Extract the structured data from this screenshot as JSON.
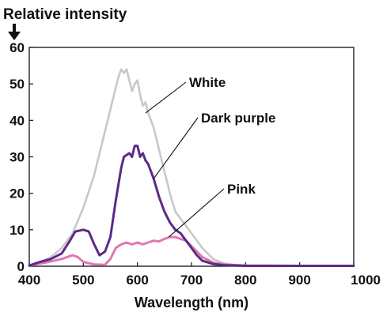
{
  "chart_data": {
    "type": "line",
    "title": "Relative intensity",
    "xlabel": "Wavelength (nm)",
    "ylabel": "Relative intensity",
    "xlim": [
      400,
      1000
    ],
    "ylim": [
      0,
      60
    ],
    "x_ticks": [
      "400",
      "500",
      "600",
      "700",
      "800",
      "900",
      "1000"
    ],
    "y_ticks": [
      "0",
      "10",
      "20",
      "30",
      "40",
      "50",
      "60"
    ],
    "grid": false,
    "legend": "direct labels",
    "series": [
      {
        "name": "White",
        "color": "#c8c8c8",
        "points": [
          [
            400,
            0.2
          ],
          [
            420,
            1
          ],
          [
            440,
            2.5
          ],
          [
            460,
            5
          ],
          [
            480,
            9
          ],
          [
            500,
            16
          ],
          [
            520,
            25
          ],
          [
            540,
            37
          ],
          [
            555,
            46
          ],
          [
            565,
            52
          ],
          [
            570,
            54
          ],
          [
            575,
            53
          ],
          [
            580,
            54
          ],
          [
            585,
            51
          ],
          [
            590,
            48
          ],
          [
            595,
            50
          ],
          [
            600,
            51
          ],
          [
            605,
            47
          ],
          [
            610,
            44
          ],
          [
            615,
            45
          ],
          [
            620,
            42
          ],
          [
            630,
            38
          ],
          [
            640,
            32
          ],
          [
            650,
            26
          ],
          [
            660,
            20
          ],
          [
            670,
            15
          ],
          [
            680,
            13
          ],
          [
            690,
            11
          ],
          [
            700,
            9
          ],
          [
            710,
            7
          ],
          [
            720,
            5
          ],
          [
            740,
            2
          ],
          [
            760,
            0.8
          ],
          [
            780,
            0.3
          ],
          [
            800,
            0.2
          ],
          [
            850,
            0.1
          ],
          [
            900,
            0.1
          ],
          [
            1000,
            0.1
          ]
        ]
      },
      {
        "name": "Dark purple",
        "color": "#5c2a8a",
        "points": [
          [
            400,
            0.2
          ],
          [
            420,
            1.2
          ],
          [
            440,
            2
          ],
          [
            460,
            3.5
          ],
          [
            475,
            7
          ],
          [
            485,
            9.5
          ],
          [
            500,
            10
          ],
          [
            510,
            9.5
          ],
          [
            520,
            6
          ],
          [
            530,
            3
          ],
          [
            540,
            4
          ],
          [
            550,
            8
          ],
          [
            560,
            18
          ],
          [
            570,
            27
          ],
          [
            575,
            30
          ],
          [
            585,
            31
          ],
          [
            590,
            30
          ],
          [
            595,
            33
          ],
          [
            600,
            33
          ],
          [
            605,
            30
          ],
          [
            610,
            31
          ],
          [
            615,
            29
          ],
          [
            620,
            28
          ],
          [
            630,
            24
          ],
          [
            640,
            19
          ],
          [
            650,
            15
          ],
          [
            660,
            12
          ],
          [
            670,
            10
          ],
          [
            680,
            9
          ],
          [
            690,
            7
          ],
          [
            700,
            5
          ],
          [
            710,
            3
          ],
          [
            720,
            1.5
          ],
          [
            740,
            0.6
          ],
          [
            760,
            0.3
          ],
          [
            800,
            0.1
          ],
          [
            900,
            0.1
          ],
          [
            1000,
            0.1
          ]
        ]
      },
      {
        "name": "Pink",
        "color": "#e078b0",
        "points": [
          [
            400,
            0.2
          ],
          [
            430,
            1
          ],
          [
            460,
            2
          ],
          [
            480,
            3
          ],
          [
            490,
            2.5
          ],
          [
            500,
            1.2
          ],
          [
            520,
            0.5
          ],
          [
            540,
            0.4
          ],
          [
            550,
            2
          ],
          [
            560,
            5
          ],
          [
            570,
            6
          ],
          [
            580,
            6.5
          ],
          [
            590,
            6
          ],
          [
            600,
            6.5
          ],
          [
            610,
            6
          ],
          [
            620,
            6.5
          ],
          [
            630,
            7
          ],
          [
            640,
            6.8
          ],
          [
            650,
            7.5
          ],
          [
            660,
            8
          ],
          [
            670,
            8
          ],
          [
            680,
            7.5
          ],
          [
            690,
            7
          ],
          [
            700,
            5.5
          ],
          [
            710,
            4
          ],
          [
            720,
            2.5
          ],
          [
            740,
            1
          ],
          [
            760,
            0.5
          ],
          [
            800,
            0.2
          ],
          [
            900,
            0.1
          ],
          [
            1000,
            0.1
          ]
        ]
      }
    ]
  }
}
